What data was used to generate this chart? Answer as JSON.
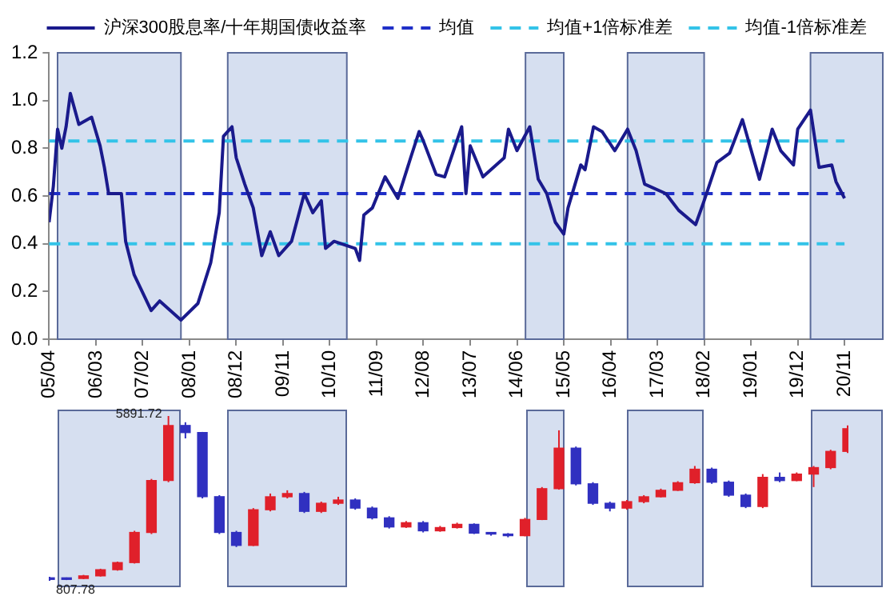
{
  "chart_data": [
    {
      "type": "line",
      "legend": "top",
      "x": [
        "2005-04",
        "2005-05",
        "2005-06",
        "2005-07",
        "2005-08",
        "2005-09",
        "2005-11",
        "2006-02",
        "2006-04",
        "2006-05",
        "2006-06",
        "2006-09",
        "2006-10",
        "2006-12",
        "2007-04",
        "2007-06",
        "2007-11",
        "2008-03",
        "2008-06",
        "2008-08",
        "2008-09",
        "2008-11",
        "2008-12",
        "2009-02",
        "2009-04",
        "2009-06",
        "2009-08",
        "2009-10",
        "2010-01",
        "2010-04",
        "2010-06",
        "2010-08",
        "2010-09",
        "2010-11",
        "2011-04",
        "2011-05",
        "2011-06",
        "2011-08",
        "2011-11",
        "2012-02",
        "2012-05",
        "2012-07",
        "2012-08",
        "2012-11",
        "2013-01",
        "2013-05",
        "2013-06",
        "2013-07",
        "2013-10",
        "2014-03",
        "2014-04",
        "2014-06",
        "2014-09",
        "2014-11",
        "2015-01",
        "2015-03",
        "2015-05",
        "2015-06",
        "2015-09",
        "2015-10",
        "2015-12",
        "2016-02",
        "2016-05",
        "2016-08",
        "2016-10",
        "2016-12",
        "2017-05",
        "2017-08",
        "2017-12",
        "2018-02",
        "2018-05",
        "2018-08",
        "2018-11",
        "2019-03",
        "2019-06",
        "2019-08",
        "2019-11",
        "2019-12",
        "2020-03",
        "2020-05",
        "2020-08",
        "2020-09",
        "2020-11"
      ],
      "series": [
        {
          "name": "沪深300股息率/十年期国债收益率",
          "color": "#1a1a8c",
          "values": [
            0.49,
            0.64,
            0.88,
            0.8,
            0.89,
            1.03,
            0.9,
            0.93,
            0.81,
            0.72,
            0.61,
            0.61,
            0.41,
            0.27,
            0.12,
            0.16,
            0.08,
            0.15,
            0.32,
            0.53,
            0.85,
            0.89,
            0.76,
            0.65,
            0.55,
            0.35,
            0.45,
            0.35,
            0.41,
            0.61,
            0.53,
            0.58,
            0.38,
            0.41,
            0.38,
            0.33,
            0.52,
            0.55,
            0.68,
            0.59,
            0.76,
            0.87,
            0.83,
            0.69,
            0.68,
            0.89,
            0.61,
            0.81,
            0.68,
            0.76,
            0.88,
            0.79,
            0.89,
            0.67,
            0.61,
            0.49,
            0.44,
            0.55,
            0.73,
            0.71,
            0.89,
            0.87,
            0.79,
            0.88,
            0.79,
            0.65,
            0.61,
            0.54,
            0.48,
            0.58,
            0.74,
            0.78,
            0.92,
            0.67,
            0.88,
            0.79,
            0.73,
            0.88,
            0.96,
            0.72,
            0.73,
            0.66,
            0.59
          ]
        }
      ],
      "ref_lines": [
        {
          "axis": "y",
          "value": 0.61,
          "label": "均值",
          "color": "#1f2fc8",
          "line_style": "dashed"
        },
        {
          "axis": "y",
          "value": 0.83,
          "label": "均值+1倍标准差",
          "color": "#33c3e8",
          "line_style": "dashed"
        },
        {
          "axis": "y",
          "value": 0.4,
          "label": "均值-1倍标准差",
          "color": "#33c3e8",
          "line_style": "dashed"
        }
      ],
      "bands": [
        {
          "axis": "x",
          "from": "2005-06",
          "to": "2007-11",
          "color": "#d6dff0"
        },
        {
          "axis": "x",
          "from": "2008-10",
          "to": "2011-02",
          "color": "#d6dff0"
        },
        {
          "axis": "x",
          "from": "2014-08",
          "to": "2015-05",
          "color": "#d6dff0"
        },
        {
          "axis": "x",
          "from": "2016-08",
          "to": "2018-02",
          "color": "#d6dff0"
        },
        {
          "axis": "x",
          "from": "2020-03",
          "to": "2021-08",
          "color": "#d6dff0"
        }
      ],
      "xlim": [
        "2005-04",
        "2021-08"
      ],
      "xticks": [
        {
          "value": "2005-04",
          "label": "05/04"
        },
        {
          "value": "2006-03",
          "label": "06/03"
        },
        {
          "value": "2007-02",
          "label": "07/02"
        },
        {
          "value": "2008-01",
          "label": "08/01"
        },
        {
          "value": "2008-12",
          "label": "08/12"
        },
        {
          "value": "2009-11",
          "label": "09/11"
        },
        {
          "value": "2010-10",
          "label": "10/10"
        },
        {
          "value": "2011-09",
          "label": "11/09"
        },
        {
          "value": "2012-08",
          "label": "12/08"
        },
        {
          "value": "2013-07",
          "label": "13/07"
        },
        {
          "value": "2014-06",
          "label": "14/06"
        },
        {
          "value": "2015-05",
          "label": "15/05"
        },
        {
          "value": "2016-04",
          "label": "16/04"
        },
        {
          "value": "2017-03",
          "label": "17/03"
        },
        {
          "value": "2018-02",
          "label": "18/02"
        },
        {
          "value": "2019-01",
          "label": "19/01"
        },
        {
          "value": "2019-12",
          "label": "19/12"
        },
        {
          "value": "2020-11",
          "label": "20/11"
        }
      ],
      "ylim": [
        0,
        1.2
      ],
      "yticks": [
        {
          "value": 0,
          "label": "0.0"
        },
        {
          "value": 0.2,
          "label": "0.2"
        },
        {
          "value": 0.4,
          "label": "0.4"
        },
        {
          "value": 0.6,
          "label": "0.6"
        },
        {
          "value": 0.8,
          "label": "0.8"
        },
        {
          "value": 1,
          "label": "1.0"
        },
        {
          "value": 1.2,
          "label": "1.2"
        }
      ]
    },
    {
      "type": "candlestick",
      "categories": [
        null,
        null,
        null,
        null,
        null,
        null,
        null,
        null,
        null,
        null,
        null,
        null,
        null,
        null,
        null,
        null,
        null,
        null,
        null,
        null,
        null,
        null,
        null,
        null,
        null,
        null,
        null,
        null,
        null,
        null,
        null,
        null,
        null,
        null,
        null,
        null,
        null,
        null,
        null,
        null,
        null,
        null,
        null,
        null,
        null,
        null,
        null,
        null
      ],
      "ohlc": [
        [
          900,
          930,
          807.78,
          850
        ],
        [
          850,
          910,
          830,
          880
        ],
        [
          880,
          990,
          860,
          960
        ],
        [
          960,
          1180,
          940,
          1150
        ],
        [
          1150,
          1400,
          1120,
          1370
        ],
        [
          1370,
          2350,
          1340,
          2300
        ],
        [
          2300,
          3950,
          2250,
          3900
        ],
        [
          3900,
          5891.72,
          3850,
          5600
        ],
        [
          5600,
          5700,
          5200,
          5380
        ],
        [
          5380,
          5400,
          3350,
          3403
        ],
        [
          3403,
          3450,
          2250,
          2300
        ],
        [
          2300,
          2350,
          1850,
          1900
        ],
        [
          1900,
          3050,
          1880,
          3000
        ],
        [
          3000,
          3500,
          2950,
          3400
        ],
        [
          3400,
          3600,
          3350,
          3500
        ],
        [
          3500,
          3550,
          2900,
          2950
        ],
        [
          2950,
          3250,
          2900,
          3200
        ],
        [
          3200,
          3400,
          3150,
          3300
        ],
        [
          3300,
          3350,
          3000,
          3050
        ],
        [
          3050,
          3100,
          2700,
          2750
        ],
        [
          2750,
          2800,
          2420,
          2469
        ],
        [
          2469,
          2650,
          2440,
          2600
        ],
        [
          2600,
          2650,
          2300,
          2350
        ],
        [
          2350,
          2500,
          2320,
          2450
        ],
        [
          2450,
          2600,
          2420,
          2550
        ],
        [
          2550,
          2580,
          2250,
          2278
        ],
        [
          2278,
          2300,
          2200,
          2250
        ],
        [
          2250,
          2280,
          2150,
          2200
        ],
        [
          2200,
          2750,
          2180,
          2700
        ],
        [
          2700,
          3700,
          2680,
          3650
        ],
        [
          3650,
          5450,
          3620,
          4900
        ],
        [
          4900,
          4950,
          3750,
          3800
        ],
        [
          3800,
          3850,
          3150,
          3200
        ],
        [
          3200,
          3250,
          2950,
          3050
        ],
        [
          3050,
          3300,
          3000,
          3250
        ],
        [
          3250,
          3450,
          3200,
          3400
        ],
        [
          3400,
          3650,
          3380,
          3600
        ],
        [
          3600,
          3880,
          3580,
          3834
        ],
        [
          3834,
          4350,
          3800,
          4250
        ],
        [
          4250,
          4300,
          3800,
          3850
        ],
        [
          3850,
          3900,
          3400,
          3450
        ],
        [
          3450,
          3500,
          3050,
          3100
        ],
        [
          3100,
          4100,
          3050,
          4000
        ],
        [
          4000,
          4150,
          3850,
          3900
        ],
        [
          3900,
          4150,
          3880,
          4100
        ],
        [
          4100,
          4350,
          3700,
          4300
        ],
        [
          4300,
          4850,
          4250,
          4800
        ],
        [
          4800,
          5600,
          4750,
          5500
        ]
      ],
      "colors": [
        "#3030c0",
        "#3030c0",
        "#e0202a",
        "#e0202a",
        "#e0202a",
        "#e0202a",
        "#e0202a",
        "#e0202a",
        "#3030c0",
        "#3030c0",
        "#3030c0",
        "#3030c0",
        "#e0202a",
        "#e0202a",
        "#e0202a",
        "#3030c0",
        "#e0202a",
        "#e0202a",
        "#3030c0",
        "#3030c0",
        "#3030c0",
        "#e0202a",
        "#3030c0",
        "#e0202a",
        "#e0202a",
        "#3030c0",
        "#3030c0",
        "#3030c0",
        "#e0202a",
        "#e0202a",
        "#e0202a",
        "#3030c0",
        "#3030c0",
        "#3030c0",
        "#e0202a",
        "#e0202a",
        "#e0202a",
        "#e0202a",
        "#e0202a",
        "#3030c0",
        "#3030c0",
        "#3030c0",
        "#e0202a",
        "#3030c0",
        "#e0202a",
        "#e0202a",
        "#e0202a",
        "#e0202a"
      ],
      "annotations": [
        "5891.72",
        "807.78"
      ]
    }
  ]
}
